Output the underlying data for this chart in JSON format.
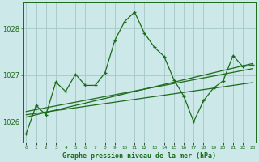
{
  "title": "Graphe pression niveau de la mer (hPa)",
  "background_color": "#cce8e8",
  "grid_color": "#aacccc",
  "line_color": "#1a6b1a",
  "text_color": "#1a6b1a",
  "hours": [
    0,
    1,
    2,
    3,
    4,
    5,
    6,
    7,
    8,
    9,
    10,
    11,
    12,
    13,
    14,
    15,
    16,
    17,
    18,
    19,
    20,
    21,
    22,
    23
  ],
  "pressure_main": [
    1025.75,
    1026.35,
    1026.15,
    1026.85,
    1026.65,
    1027.02,
    1026.78,
    1026.78,
    1027.05,
    1027.75,
    1028.15,
    1028.35,
    1027.9,
    1027.6,
    1027.4,
    1026.9,
    1026.55,
    1026.0,
    1026.45,
    1026.72,
    1026.88,
    1027.42,
    1027.18,
    1027.22
  ],
  "pressure_linear1": [
    1026.15,
    1026.18,
    1026.21,
    1026.24,
    1026.27,
    1026.3,
    1026.33,
    1026.36,
    1026.39,
    1026.42,
    1026.45,
    1026.48,
    1026.51,
    1026.54,
    1026.57,
    1026.6,
    1026.63,
    1026.66,
    1026.69,
    1026.72,
    1026.75,
    1026.78,
    1026.81,
    1026.84
  ],
  "pressure_linear2": [
    1026.22,
    1026.26,
    1026.3,
    1026.34,
    1026.38,
    1026.42,
    1026.46,
    1026.5,
    1026.54,
    1026.58,
    1026.62,
    1026.66,
    1026.7,
    1026.74,
    1026.78,
    1026.82,
    1026.86,
    1026.9,
    1026.94,
    1026.98,
    1027.02,
    1027.06,
    1027.1,
    1027.14
  ],
  "pressure_linear3": [
    1026.1,
    1026.15,
    1026.2,
    1026.25,
    1026.3,
    1026.35,
    1026.4,
    1026.45,
    1026.5,
    1026.55,
    1026.6,
    1026.65,
    1026.7,
    1026.75,
    1026.8,
    1026.85,
    1026.9,
    1026.95,
    1027.0,
    1027.05,
    1027.1,
    1027.15,
    1027.2,
    1027.25
  ],
  "ylim": [
    1025.55,
    1028.55
  ],
  "yticks": [
    1026,
    1027,
    1028
  ],
  "xlim": [
    -0.3,
    23.3
  ]
}
